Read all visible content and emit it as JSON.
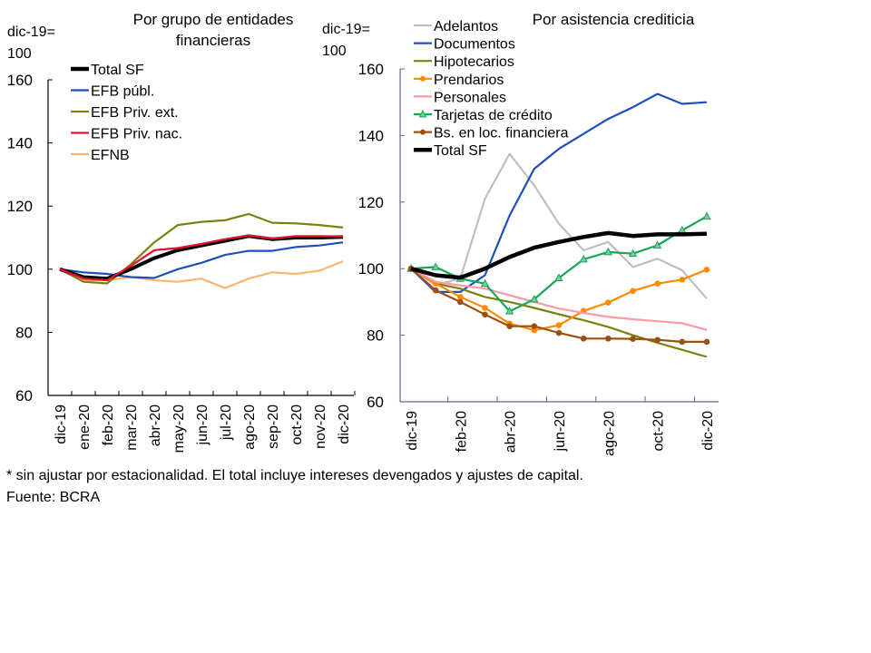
{
  "chart_data": [
    {
      "type": "line",
      "title": "Por grupo de entidades financieras",
      "title_lines": [
        "Por grupo de entidades",
        "financieras"
      ],
      "ylabel_lines": [
        "dic-19=",
        "100"
      ],
      "xlabel": "",
      "ylim": [
        60,
        160
      ],
      "yticks": [
        60,
        80,
        100,
        120,
        140,
        160
      ],
      "grid": false,
      "legend": "top-left",
      "x": [
        "dic-19",
        "ene-20",
        "feb-20",
        "mar-20",
        "abr-20",
        "may-20",
        "jun-20",
        "jul-20",
        "ago-20",
        "sep-20",
        "oct-20",
        "nov-20",
        "dic-20"
      ],
      "xtick_labels": [
        "dic-19",
        "ene-20",
        "feb-20",
        "mar-20",
        "abr-20",
        "may-20",
        "jun-20",
        "jul-20",
        "ago-20",
        "sep-20",
        "oct-20",
        "nov-20",
        "dic-20"
      ],
      "series": [
        {
          "name": "EFNB",
          "color": "#FFB570",
          "marker": "none",
          "values": [
            100,
            96.5,
            96.5,
            97.5,
            96.5,
            96,
            97,
            94,
            97,
            99,
            98.5,
            99.5,
            102.5
          ]
        },
        {
          "name": "EFB públ.",
          "color": "#1F4EBD",
          "marker": "none",
          "values": [
            100,
            99,
            98.5,
            97.5,
            97.2,
            100,
            102,
            104.5,
            105.8,
            105.8,
            107,
            107.5,
            108.5
          ]
        },
        {
          "name": "EFB Priv. ext.",
          "color": "#7F7F0F",
          "marker": "none",
          "values": [
            100,
            96,
            95.5,
            101.5,
            108.5,
            114,
            115,
            115.5,
            117.5,
            114.7,
            114.5,
            114,
            113.2
          ]
        },
        {
          "name": "Total SF",
          "color": "#000000",
          "marker": "none",
          "thick": true,
          "values": [
            100,
            97.5,
            97,
            100,
            103.5,
            106,
            107.5,
            109,
            110.5,
            109.5,
            110,
            110,
            110.2
          ]
        },
        {
          "name": "EFB Priv. nac.",
          "color": "#E8112D",
          "marker": "none",
          "values": [
            100,
            97,
            96.5,
            101,
            106,
            106.7,
            108,
            109.5,
            110.7,
            109.7,
            110.5,
            110.5,
            110.4
          ]
        }
      ],
      "legend_order": [
        "Total SF",
        "EFB públ.",
        "EFB Priv. ext.",
        "EFB Priv. nac.",
        "EFNB"
      ]
    },
    {
      "type": "line",
      "title": "Por asistencia crediticia",
      "title_lines": [
        "Por asistencia crediticia"
      ],
      "ylabel_lines": [
        "dic-19=",
        "100"
      ],
      "xlabel": "",
      "ylim": [
        60,
        160
      ],
      "yticks": [
        60,
        80,
        100,
        120,
        140,
        160
      ],
      "grid": false,
      "legend": "top-left",
      "x": [
        "dic-19",
        "ene-20",
        "feb-20",
        "mar-20",
        "abr-20",
        "may-20",
        "jun-20",
        "jul-20",
        "ago-20",
        "sep-20",
        "oct-20",
        "nov-20",
        "dic-20"
      ],
      "xtick_labels": [
        "dic-19",
        "feb-20",
        "abr-20",
        "jun-20",
        "ago-20",
        "oct-20",
        "dic-20"
      ],
      "series": [
        {
          "name": "Adelantos",
          "color": "#BFBFBF",
          "marker": "none",
          "values": [
            100,
            95,
            97,
            121,
            134.5,
            125,
            113.5,
            105.5,
            108,
            100.5,
            103,
            99.5,
            91
          ]
        },
        {
          "name": "Documentos",
          "color": "#1F4EBD",
          "marker": "none",
          "values": [
            100,
            93,
            93,
            98,
            116,
            130,
            136,
            140.5,
            145,
            148.5,
            152.5,
            149.5,
            150
          ]
        },
        {
          "name": "Hipotecarios",
          "color": "#7F7F0F",
          "marker": "none",
          "values": [
            100,
            95.5,
            94,
            91.5,
            90,
            88.2,
            86.3,
            84.5,
            82.5,
            80,
            77.7,
            75.6,
            73.5
          ]
        },
        {
          "name": "Prendarios",
          "color": "#FF8A00",
          "marker": "circle",
          "values": [
            100,
            95.5,
            91.5,
            88.2,
            83.5,
            81.5,
            83,
            87.3,
            89.8,
            93.3,
            95.5,
            96.7,
            99.7
          ]
        },
        {
          "name": "Personales",
          "color": "#FF99A6",
          "marker": "none",
          "values": [
            100,
            96,
            95,
            94,
            92,
            90,
            88,
            86.7,
            85.5,
            84.8,
            84.2,
            83.6,
            81.6
          ]
        },
        {
          "name": "Tarjetas de crédito",
          "color": "#13A856",
          "marker": "triangle",
          "values": [
            100,
            100.5,
            97,
            95.5,
            87.2,
            90.8,
            97.2,
            102.8,
            105,
            104.5,
            107,
            111.5,
            115.7
          ]
        },
        {
          "name": "Bs. en loc. financiera",
          "color": "#9B5012",
          "marker": "circle",
          "values": [
            100,
            93.5,
            90,
            86.2,
            82.7,
            82.7,
            80.7,
            79,
            79,
            78.9,
            78.6,
            78,
            78
          ]
        },
        {
          "name": "Total SF",
          "color": "#000000",
          "marker": "none",
          "thick": true,
          "values": [
            100,
            98,
            97.3,
            100,
            103.5,
            106.3,
            108,
            109.5,
            110.7,
            109.8,
            110.3,
            110.3,
            110.5
          ]
        }
      ],
      "legend_order": [
        "Adelantos",
        "Documentos",
        "Hipotecarios",
        "Prendarios",
        "Personales",
        "Tarjetas de crédito",
        "Bs. en loc. financiera",
        "Total SF"
      ]
    }
  ],
  "footer": {
    "note": "* sin ajustar por estacionalidad. El total incluye intereses devengados y ajustes de capital.",
    "source": "Fuente: BCRA"
  }
}
